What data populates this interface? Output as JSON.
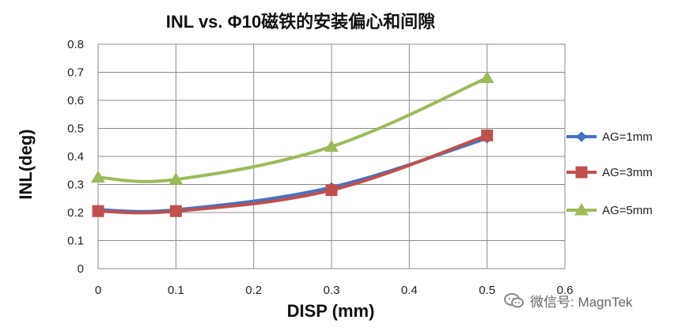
{
  "chart_data": {
    "type": "line",
    "title": "INL vs. Φ10磁铁的安装偏心和间隙",
    "xlabel": "DISP (mm)",
    "ylabel": "INL(deg)",
    "xlim": [
      0,
      0.6
    ],
    "ylim": [
      0,
      0.8
    ],
    "x_ticks": [
      "0",
      "0.1",
      "0.2",
      "0.3",
      "0.4",
      "0.5",
      "0.6"
    ],
    "y_ticks": [
      "0",
      "0.1",
      "0.2",
      "0.3",
      "0.4",
      "0.5",
      "0.6",
      "0.7",
      "0.8"
    ],
    "x": [
      0,
      0.1,
      0.3,
      0.5
    ],
    "series": [
      {
        "name": "AG=1mm",
        "values": [
          0.21,
          0.21,
          0.29,
          0.465
        ],
        "color": "#4472c4",
        "marker": "diamond"
      },
      {
        "name": "AG=3mm",
        "values": [
          0.205,
          0.205,
          0.28,
          0.475
        ],
        "color": "#c0504d",
        "marker": "square"
      },
      {
        "name": "AG=5mm",
        "values": [
          0.325,
          0.318,
          0.435,
          0.68
        ],
        "color": "#9bbb59",
        "marker": "triangle"
      }
    ],
    "grid": true,
    "legend_position": "right"
  },
  "watermark": {
    "text": "微信号: MagnTek",
    "icon": "wechat-icon"
  }
}
